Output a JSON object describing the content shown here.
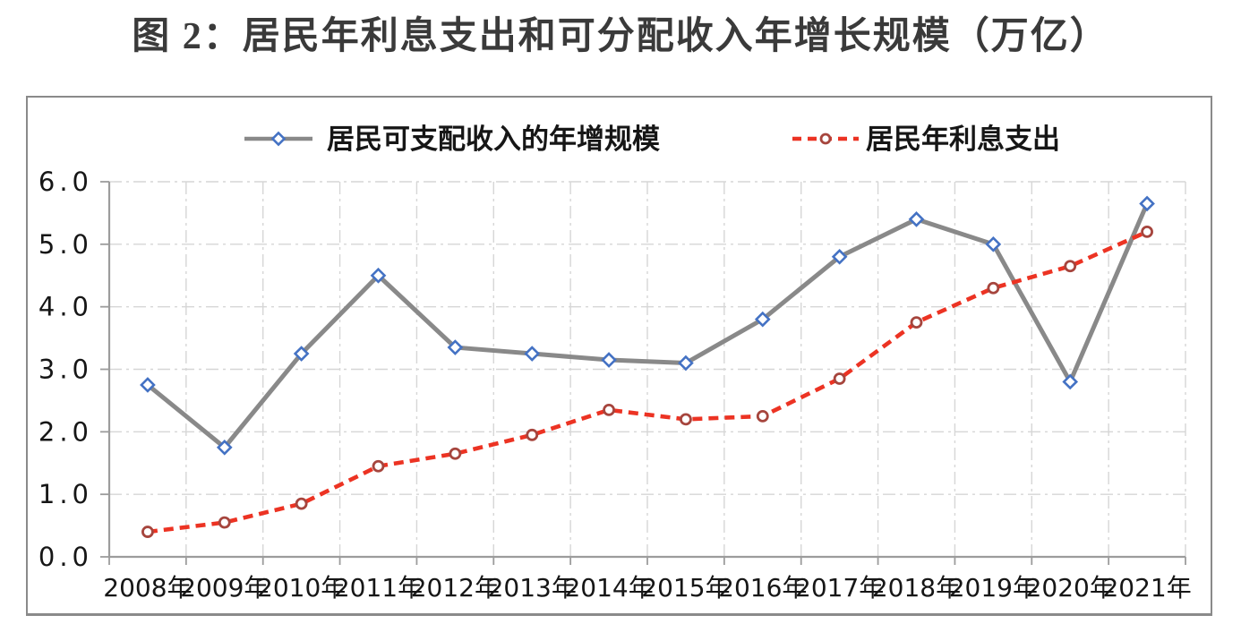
{
  "title": "图 2：居民年利息支出和可分配收入年增长规模（万亿）",
  "colors": {
    "title_text": "#3a3a3a",
    "income_line": "#898989",
    "income_marker_outline": "#4472c4",
    "interest_line": "#ec3323",
    "interest_marker_outline": "#a6453d",
    "gridline": "#d6d6d6",
    "axis": "#9c9c9c",
    "frame_border": "#8a8a8a",
    "tick_text": "#161616"
  },
  "chart_data": {
    "type": "line",
    "title": "图 2：居民年利息支出和可分配收入年增长规模（万亿）",
    "categories": [
      "2008年",
      "2009年",
      "2010年",
      "2011年",
      "2012年",
      "2013年",
      "2014年",
      "2015年",
      "2016年",
      "2017年",
      "2018年",
      "2019年",
      "2020年",
      "2021年"
    ],
    "series": [
      {
        "name": "居民可支配收入的年增规模",
        "style": "solid-gray-line-blue-diamond-markers",
        "values": [
          2.75,
          1.75,
          3.25,
          4.5,
          3.35,
          3.25,
          3.15,
          3.1,
          3.8,
          4.8,
          5.4,
          5.0,
          2.8,
          5.65
        ]
      },
      {
        "name": "居民年利息支出",
        "style": "dashed-red-line-dark-red-circle-markers",
        "values": [
          0.4,
          0.55,
          0.85,
          1.45,
          1.65,
          1.95,
          2.35,
          2.2,
          2.25,
          2.85,
          3.75,
          4.3,
          4.65,
          5.2
        ]
      }
    ],
    "xlabel": "",
    "ylabel": "",
    "ylim": [
      0.0,
      6.0
    ],
    "ytick_step": 1.0,
    "ytick_labels": [
      "0.0",
      "1.0",
      "2.0",
      "3.0",
      "4.0",
      "5.0",
      "6.0"
    ],
    "grid": true,
    "grid_style": "dash-dot",
    "legend_position": "top-inside"
  }
}
